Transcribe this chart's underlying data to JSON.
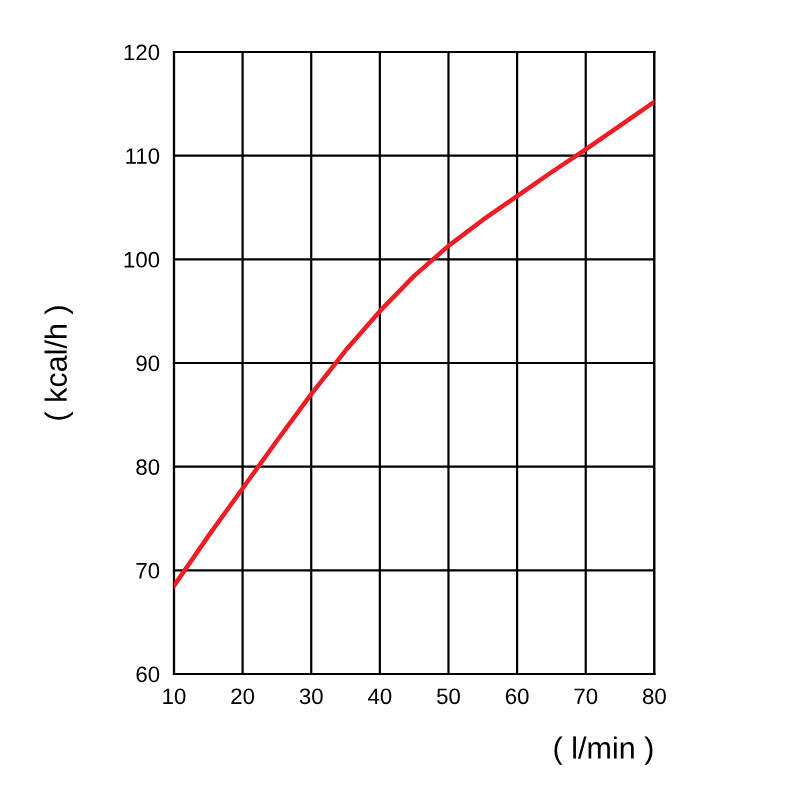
{
  "chart_data": {
    "type": "line",
    "xlabel": "( l/min )",
    "ylabel": "( kcal/h )",
    "x": [
      10,
      15,
      20,
      25,
      30,
      35,
      40,
      45,
      50,
      55,
      60,
      65,
      70,
      75,
      80
    ],
    "series": [
      {
        "color": "#ee1c25",
        "values": [
          68.5,
          73.3,
          77.9,
          82.5,
          87.0,
          91.2,
          95.0,
          98.4,
          101.3,
          103.8,
          106.1,
          108.4,
          110.6,
          112.9,
          115.2
        ]
      }
    ],
    "xlim": [
      10,
      80
    ],
    "ylim": [
      60,
      120
    ],
    "xticks": [
      10,
      20,
      30,
      40,
      50,
      60,
      70,
      80
    ],
    "yticks": [
      60,
      70,
      80,
      90,
      100,
      110,
      120
    ],
    "grid": true,
    "marker": "none",
    "line_style": "solid"
  }
}
